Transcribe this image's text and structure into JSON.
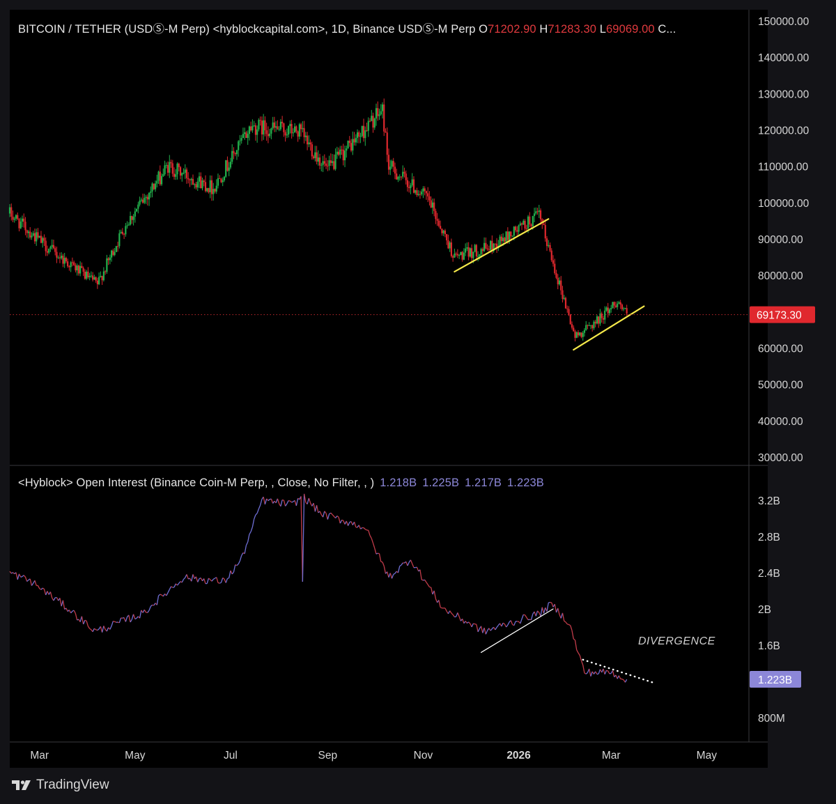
{
  "price_header": {
    "title": "BITCOIN / TETHER (USDⓈ-M Perp) <hyblockcapital.com>, 1D, Binance USDⓈ-M Perp",
    "open_label": "O",
    "open": "71202.90",
    "high_label": "H",
    "high": "71283.30",
    "low_label": "L",
    "low": "69069.00",
    "close_label": "C..."
  },
  "oi_header": {
    "title": "<Hyblock> Open Interest (Binance Coin-M Perp, , Close, No Filter, , )",
    "values": [
      "1.218B",
      "1.225B",
      "1.217B",
      "1.223B"
    ]
  },
  "annotation": "DIVERGENCE",
  "footer": {
    "brand": "TradingView"
  },
  "colors": {
    "up": "#26a69a",
    "down": "#ef5350",
    "bull_candle": "#22b14c",
    "bear_candle": "#e0282e",
    "trendline": "#f5e94a",
    "oi_line_a": "#c23c4a",
    "oi_line_b": "#6f6fd6",
    "last_price_badge": "#e0282e",
    "oi_badge": "#8c87d8"
  },
  "chart_data": [
    {
      "type": "candlestick",
      "title": "BITCOIN / TETHER (USDⓈ-M Perp), 1D",
      "ylim": [
        30000,
        150000
      ],
      "yticks": [
        "150000.00",
        "140000.00",
        "130000.00",
        "120000.00",
        "110000.00",
        "100000.00",
        "90000.00",
        "80000.00",
        "70000.00",
        "60000.00",
        "50000.00",
        "40000.00",
        "30000.00"
      ],
      "last_price": 69173.3,
      "last_price_label": "69173.30",
      "x_dates": [
        "2025-02-10",
        "2025-03-05",
        "2025-04-07",
        "2025-04-25",
        "2025-05-22",
        "2025-06-20",
        "2025-07-14",
        "2025-08-14",
        "2025-09-01",
        "2025-10-06",
        "2025-10-10",
        "2025-11-04",
        "2025-11-21",
        "2025-12-15",
        "2026-01-14",
        "2026-02-06",
        "2026-02-20",
        "2026-03-05",
        "2026-03-11"
      ],
      "close_path": [
        97000,
        88000,
        77500,
        94000,
        110000,
        104000,
        121000,
        119500,
        109000,
        125500,
        110000,
        101000,
        85000,
        88000,
        96500,
        63000,
        67500,
        73000,
        69173
      ],
      "trendlines": [
        {
          "from": [
            "2025-11-21",
            81000
          ],
          "to": [
            "2026-01-20",
            95500
          ]
        },
        {
          "from": [
            "2026-02-05",
            59500
          ],
          "to": [
            "2026-03-22",
            71500
          ]
        }
      ]
    },
    {
      "type": "line",
      "title": "<Hyblock> Open Interest (Binance Coin-M Perp, , Close, No Filter, , )",
      "ylim": [
        0.6,
        3.4
      ],
      "yticks": [
        "3.2B",
        "2.8B",
        "2.4B",
        "2B",
        "1.6B",
        "800M"
      ],
      "last_value": 1.223,
      "last_value_label": "1.223B",
      "x_dates": [
        "2025-02-10",
        "2025-02-24",
        "2025-03-16",
        "2025-04-06",
        "2025-05-06",
        "2025-06-01",
        "2025-06-27",
        "2025-07-08",
        "2025-07-21",
        "2025-08-10",
        "2025-08-16",
        "2025-08-28",
        "2025-09-25",
        "2025-10-10",
        "2025-10-24",
        "2025-11-14",
        "2025-12-10",
        "2026-01-14",
        "2026-01-22",
        "2026-02-02",
        "2026-02-12",
        "2026-03-01",
        "2026-03-11"
      ],
      "values": [
        2.4,
        2.3,
        2.05,
        1.75,
        1.95,
        2.35,
        2.3,
        2.55,
        3.2,
        3.15,
        3.25,
        3.05,
        2.9,
        2.35,
        2.55,
        2.0,
        1.75,
        1.95,
        2.05,
        1.85,
        1.3,
        1.3,
        1.223
      ],
      "trendlines": [
        {
          "from": [
            "2025-12-08",
            1.52
          ],
          "to": [
            "2026-01-23",
            2.0
          ],
          "style": "solid"
        },
        {
          "from": [
            "2026-02-11",
            1.44
          ],
          "to": [
            "2026-03-29",
            1.18
          ],
          "style": "dotted"
        }
      ]
    }
  ],
  "x_axis": {
    "labels": [
      "Mar",
      "May",
      "Jul",
      "Sep",
      "Nov",
      "2026",
      "Mar",
      "May"
    ],
    "dates": [
      "2025-03-01",
      "2025-05-01",
      "2025-07-01",
      "2025-09-01",
      "2025-11-01",
      "2026-01-01",
      "2026-03-01",
      "2026-05-01"
    ]
  }
}
